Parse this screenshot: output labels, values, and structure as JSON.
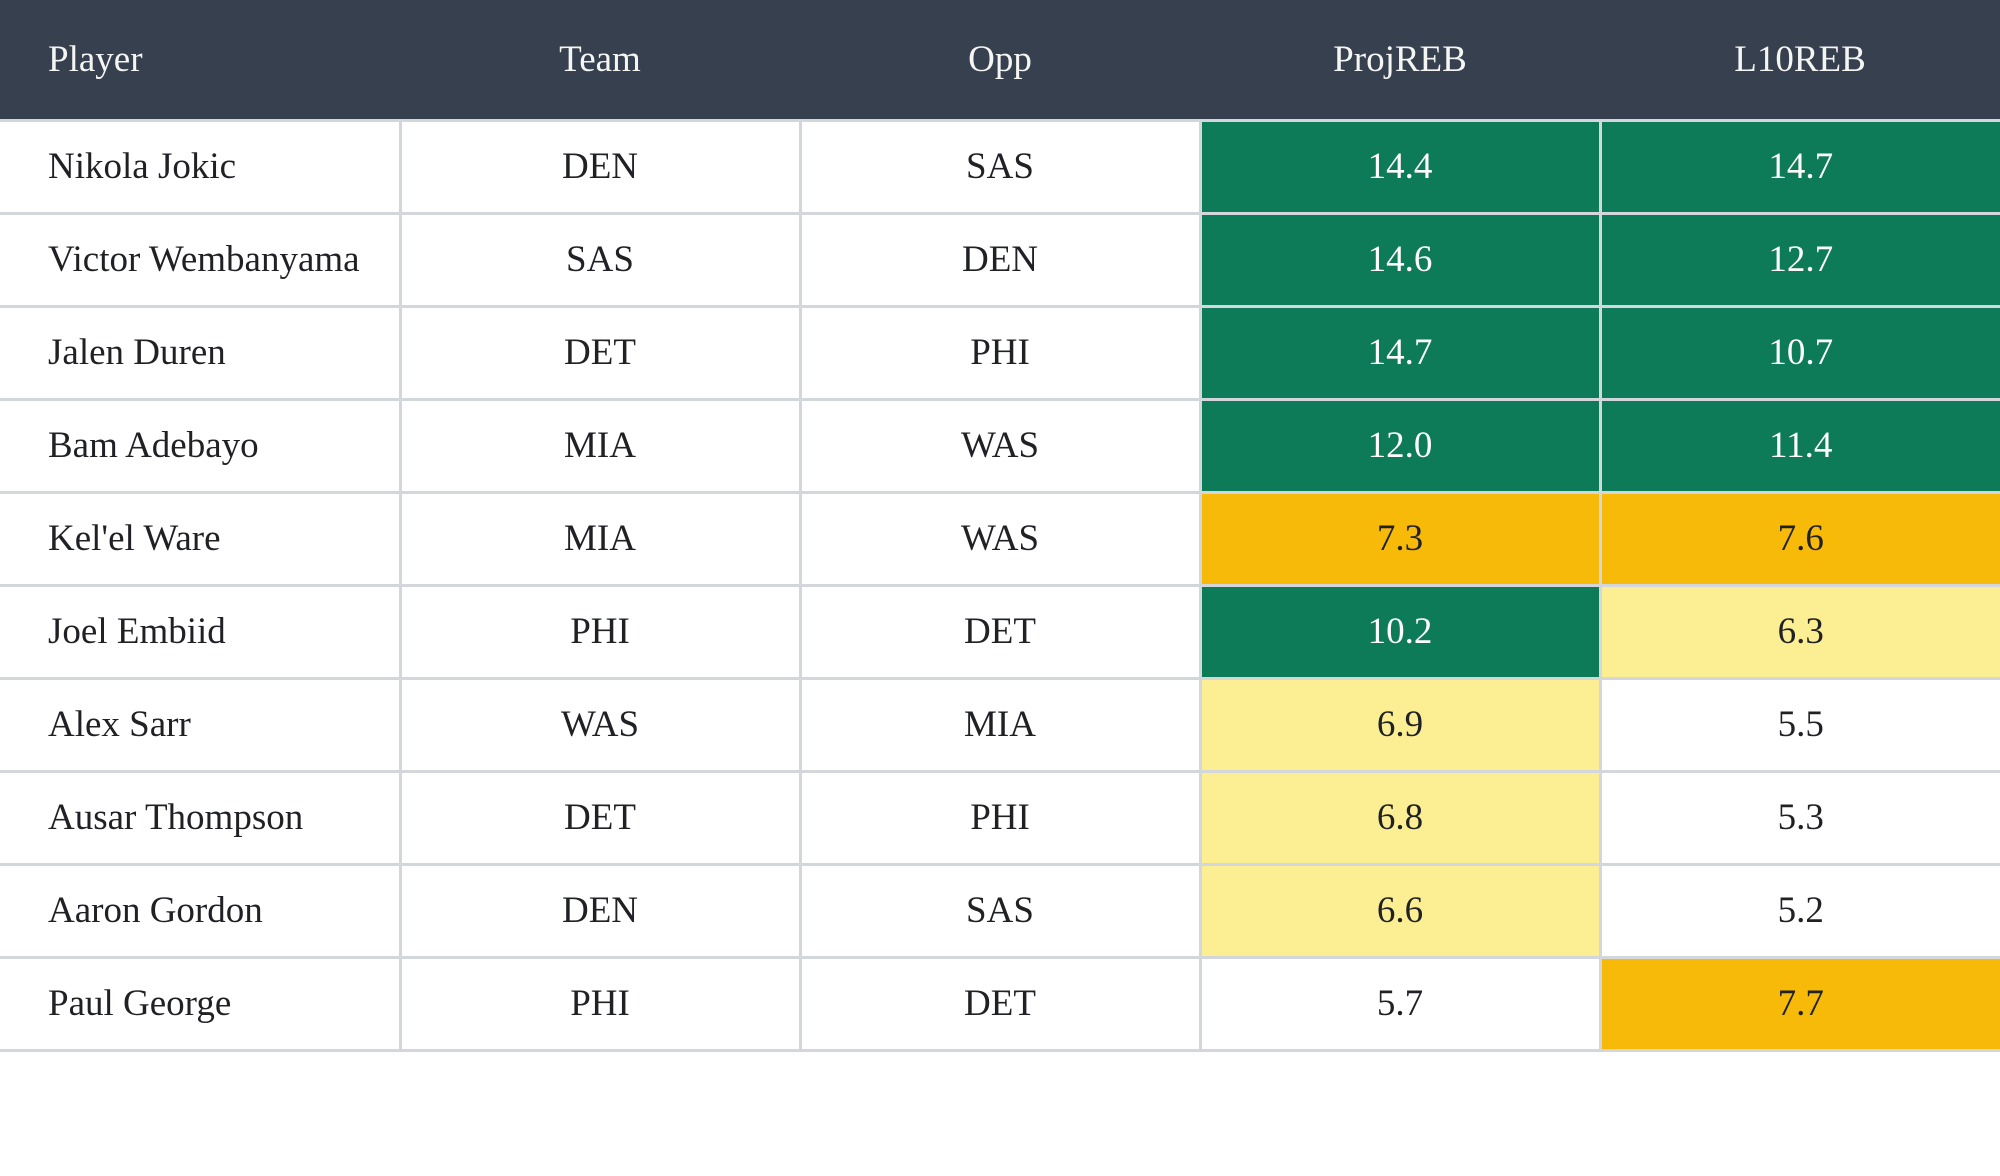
{
  "colors": {
    "header_bg": "#36404F",
    "header_text": "#F5F5F3",
    "body_text": "#1F2125",
    "border": "#D3D6DA",
    "tier_high": "#0E7B58",
    "tier_high_text": "#FDFDFB",
    "tier_mid": "#F8BA08",
    "tier_low": "#FCEE92",
    "tier_none": "#FFFFFF"
  },
  "table": {
    "columns": [
      {
        "label": "Player"
      },
      {
        "label": "Team"
      },
      {
        "label": "Opp"
      },
      {
        "label": "ProjREB"
      },
      {
        "label": "L10REB"
      }
    ],
    "rows": [
      {
        "player": "Nikola Jokic",
        "team": "DEN",
        "opp": "SAS",
        "projreb": "14.4",
        "projreb_tier": "high",
        "l10reb": "14.7",
        "l10reb_tier": "high"
      },
      {
        "player": "Victor Wembanyama",
        "team": "SAS",
        "opp": "DEN",
        "projreb": "14.6",
        "projreb_tier": "high",
        "l10reb": "12.7",
        "l10reb_tier": "high"
      },
      {
        "player": "Jalen Duren",
        "team": "DET",
        "opp": "PHI",
        "projreb": "14.7",
        "projreb_tier": "high",
        "l10reb": "10.7",
        "l10reb_tier": "high"
      },
      {
        "player": "Bam Adebayo",
        "team": "MIA",
        "opp": "WAS",
        "projreb": "12.0",
        "projreb_tier": "high",
        "l10reb": "11.4",
        "l10reb_tier": "high"
      },
      {
        "player": "Kel'el Ware",
        "team": "MIA",
        "opp": "WAS",
        "projreb": "7.3",
        "projreb_tier": "mid",
        "l10reb": "7.6",
        "l10reb_tier": "mid"
      },
      {
        "player": "Joel Embiid",
        "team": "PHI",
        "opp": "DET",
        "projreb": "10.2",
        "projreb_tier": "high",
        "l10reb": "6.3",
        "l10reb_tier": "low"
      },
      {
        "player": "Alex Sarr",
        "team": "WAS",
        "opp": "MIA",
        "projreb": "6.9",
        "projreb_tier": "low",
        "l10reb": "5.5",
        "l10reb_tier": "none"
      },
      {
        "player": "Ausar Thompson",
        "team": "DET",
        "opp": "PHI",
        "projreb": "6.8",
        "projreb_tier": "low",
        "l10reb": "5.3",
        "l10reb_tier": "none"
      },
      {
        "player": "Aaron Gordon",
        "team": "DEN",
        "opp": "SAS",
        "projreb": "6.6",
        "projreb_tier": "low",
        "l10reb": "5.2",
        "l10reb_tier": "none"
      },
      {
        "player": "Paul George",
        "team": "PHI",
        "opp": "DET",
        "projreb": "5.7",
        "projreb_tier": "none",
        "l10reb": "7.7",
        "l10reb_tier": "mid"
      }
    ]
  }
}
